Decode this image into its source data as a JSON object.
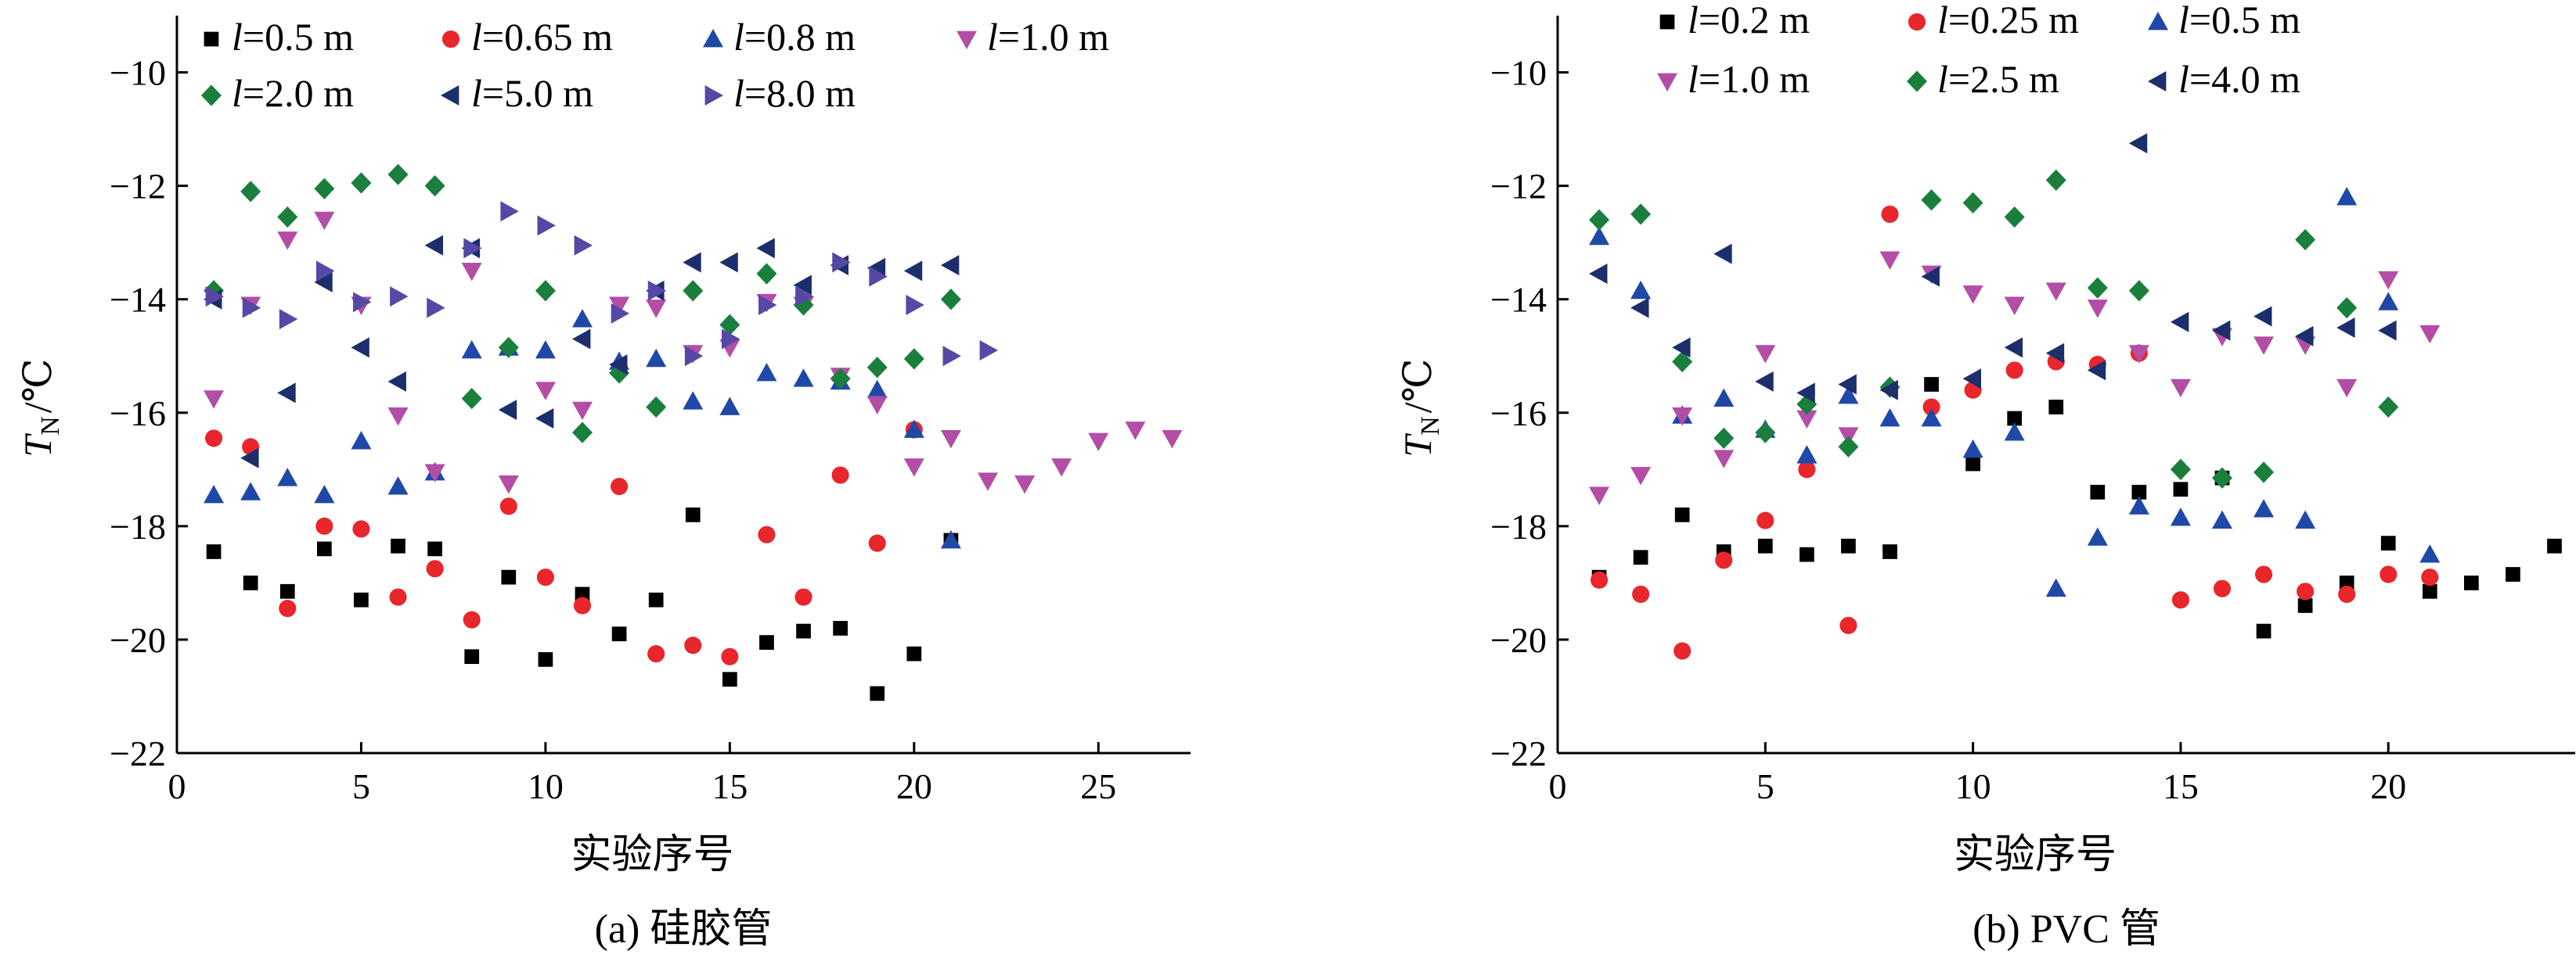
{
  "chart_data": [
    {
      "type": "scatter",
      "xlabel": "实验序号",
      "ylabel_main": "T",
      "ylabel_sub": "N",
      "ylabel_unit": "/℃",
      "caption": "(a)  硅胶管",
      "xlim": [
        0,
        27.5
      ],
      "ylim": [
        -22,
        -9
      ],
      "xticks": [
        0,
        5,
        10,
        15,
        20,
        25
      ],
      "yticks": [
        -22,
        -20,
        -18,
        -16,
        -14,
        -12,
        -10
      ],
      "ytick_labels": [
        "−22",
        "−20",
        "−18",
        "−16",
        "−14",
        "−12",
        "−10"
      ],
      "legend_rows": [
        [
          0,
          1,
          2,
          3
        ],
        [
          4,
          5,
          6
        ]
      ],
      "series": [
        {
          "name": "0.5 m",
          "marker": "square",
          "color": "#000000",
          "x": [
            1,
            2,
            3,
            4,
            5,
            6,
            7,
            8,
            9,
            10,
            11,
            12,
            13,
            14,
            15,
            16,
            17,
            18,
            19,
            20,
            21
          ],
          "y": [
            -18.45,
            -19.0,
            -19.15,
            -18.4,
            -19.3,
            -18.35,
            -18.4,
            -20.3,
            -18.9,
            -20.35,
            -19.2,
            -19.9,
            -19.3,
            -17.8,
            -20.7,
            -20.05,
            -19.85,
            -19.8,
            -20.95,
            -20.25,
            -18.25
          ]
        },
        {
          "name": "0.65 m",
          "marker": "circle",
          "color": "#e8262b",
          "x": [
            1,
            2,
            3,
            4,
            5,
            6,
            7,
            8,
            9,
            10,
            11,
            12,
            13,
            14,
            15,
            16,
            17,
            18,
            19,
            20
          ],
          "y": [
            -16.45,
            -16.6,
            -19.45,
            -18.0,
            -18.05,
            -19.25,
            -18.75,
            -19.65,
            -17.65,
            -18.9,
            -19.4,
            -17.3,
            -20.25,
            -20.1,
            -20.3,
            -18.15,
            -19.25,
            -17.1,
            -18.3,
            -16.3
          ]
        },
        {
          "name": "0.8 m",
          "marker": "triangle-up",
          "color": "#1f48a8",
          "x": [
            1,
            2,
            3,
            4,
            5,
            6,
            7,
            8,
            9,
            10,
            11,
            12,
            13,
            14,
            15,
            16,
            17,
            18,
            19,
            20,
            21
          ],
          "y": [
            -17.45,
            -17.4,
            -17.15,
            -17.45,
            -16.5,
            -17.3,
            -17.05,
            -14.9,
            -14.85,
            -14.9,
            -14.35,
            -15.1,
            -15.05,
            -15.8,
            -15.9,
            -15.3,
            -15.4,
            -15.45,
            -15.6,
            -16.3,
            -18.25
          ]
        },
        {
          "name": "1.0 m",
          "marker": "triangle-down",
          "color": "#b34da6",
          "x": [
            1,
            2,
            3,
            4,
            5,
            6,
            7,
            8,
            9,
            10,
            11,
            12,
            13,
            14,
            15,
            16,
            17,
            18,
            19,
            20,
            21,
            22,
            23,
            24,
            25,
            26,
            27
          ],
          "y": [
            -15.75,
            -14.1,
            -12.95,
            -12.6,
            -14.1,
            -16.05,
            -17.05,
            -13.5,
            -17.25,
            -15.6,
            -15.95,
            -14.1,
            -14.15,
            -14.95,
            -14.85,
            -14.05,
            -14.1,
            -15.35,
            -15.85,
            -16.95,
            -16.45,
            -17.2,
            -17.25,
            -16.95,
            -16.5,
            -16.3,
            -16.45
          ]
        },
        {
          "name": "2.0 m",
          "marker": "diamond",
          "color": "#1a7f3c",
          "x": [
            1,
            2,
            3,
            4,
            5,
            6,
            7,
            8,
            9,
            10,
            11,
            12,
            13,
            14,
            15,
            16,
            17,
            18,
            19,
            20,
            21
          ],
          "y": [
            -13.85,
            -12.1,
            -12.55,
            -12.05,
            -11.95,
            -11.8,
            -12.0,
            -15.75,
            -14.85,
            -13.85,
            -16.35,
            -15.3,
            -15.9,
            -13.85,
            -14.45,
            -13.55,
            -14.1,
            -15.4,
            -15.2,
            -15.05,
            -14.0
          ]
        },
        {
          "name": "5.0 m",
          "marker": "triangle-left",
          "color": "#1c2e6b",
          "x": [
            1,
            2,
            3,
            4,
            5,
            6,
            7,
            8,
            9,
            10,
            11,
            12,
            13,
            14,
            15,
            16,
            17,
            18,
            19,
            20,
            21
          ],
          "y": [
            -14.0,
            -16.8,
            -15.65,
            -13.7,
            -14.85,
            -15.45,
            -13.05,
            -13.1,
            -15.95,
            -16.1,
            -14.7,
            -15.15,
            -13.85,
            -13.35,
            -13.35,
            -13.1,
            -13.75,
            -13.4,
            -13.45,
            -13.5,
            -13.4
          ]
        },
        {
          "name": "8.0 m",
          "marker": "triangle-right",
          "color": "#5548a6",
          "x": [
            1,
            2,
            3,
            4,
            5,
            6,
            7,
            8,
            9,
            10,
            11,
            12,
            13,
            14,
            15,
            16,
            17,
            18,
            19,
            20,
            21,
            22
          ],
          "y": [
            -13.95,
            -14.15,
            -14.35,
            -13.5,
            -14.05,
            -13.95,
            -14.15,
            -13.1,
            -12.45,
            -12.7,
            -13.05,
            -14.25,
            -13.85,
            -15.0,
            -14.7,
            -14.1,
            -13.95,
            -13.35,
            -13.6,
            -14.1,
            -15.0,
            -14.9
          ]
        }
      ]
    },
    {
      "type": "scatter",
      "xlabel": "实验序号",
      "ylabel_main": "T",
      "ylabel_sub": "N",
      "ylabel_unit": "/℃",
      "caption": "(b)  PVC 管",
      "xlim": [
        0,
        24.5
      ],
      "ylim": [
        -22,
        -9
      ],
      "xticks": [
        0,
        5,
        10,
        15,
        20
      ],
      "yticks": [
        -22,
        -20,
        -18,
        -16,
        -14,
        -12,
        -10
      ],
      "ytick_labels": [
        "−22",
        "−20",
        "−18",
        "−16",
        "−14",
        "−12",
        "−10"
      ],
      "legend_rows": [
        [
          0,
          1,
          2
        ],
        [
          3,
          4,
          5
        ]
      ],
      "series": [
        {
          "name": "0.2 m",
          "marker": "square",
          "color": "#000000",
          "x": [
            1,
            2,
            3,
            4,
            5,
            6,
            7,
            8,
            9,
            10,
            11,
            12,
            13,
            14,
            15,
            16,
            17,
            18,
            19,
            20,
            21,
            22,
            23,
            24
          ],
          "y": [
            -18.9,
            -18.55,
            -17.8,
            -18.45,
            -18.35,
            -18.5,
            -18.35,
            -18.45,
            -15.5,
            -16.9,
            -16.1,
            -15.9,
            -17.4,
            -17.4,
            -17.35,
            -17.15,
            -19.85,
            -19.4,
            -19.0,
            -18.3,
            -19.15,
            -19.0,
            -18.85,
            -18.35
          ]
        },
        {
          "name": "0.25 m",
          "marker": "circle",
          "color": "#e8262b",
          "x": [
            1,
            2,
            3,
            4,
            5,
            6,
            7,
            8,
            9,
            10,
            11,
            12,
            13,
            14,
            15,
            16,
            17,
            18,
            19,
            20,
            21
          ],
          "y": [
            -18.95,
            -19.2,
            -20.2,
            -18.6,
            -17.9,
            -17.0,
            -19.75,
            -12.5,
            -15.9,
            -15.6,
            -15.25,
            -15.1,
            -15.15,
            -14.95,
            -19.3,
            -19.1,
            -18.85,
            -19.15,
            -19.2,
            -18.85,
            -18.9
          ]
        },
        {
          "name": "0.5 m",
          "marker": "triangle-up",
          "color": "#1f48a8",
          "x": [
            1,
            2,
            3,
            4,
            5,
            6,
            7,
            8,
            9,
            10,
            11,
            12,
            13,
            14,
            15,
            16,
            17,
            18,
            19,
            20,
            21
          ],
          "y": [
            -12.9,
            -13.85,
            -16.05,
            -15.75,
            -16.3,
            -16.75,
            -15.7,
            -16.1,
            -16.1,
            -16.65,
            -16.35,
            -19.1,
            -18.2,
            -17.65,
            -17.85,
            -17.9,
            -17.7,
            -17.9,
            -12.2,
            -14.05,
            -18.5
          ]
        },
        {
          "name": "1.0 m",
          "marker": "triangle-down",
          "color": "#b34da6",
          "x": [
            1,
            2,
            3,
            4,
            5,
            6,
            7,
            8,
            9,
            10,
            11,
            12,
            13,
            14,
            15,
            16,
            17,
            18,
            19,
            20,
            21
          ],
          "y": [
            -17.45,
            -17.1,
            -16.05,
            -16.8,
            -14.95,
            -16.1,
            -16.4,
            -13.3,
            -13.55,
            -13.9,
            -14.1,
            -13.85,
            -14.15,
            -14.95,
            -15.55,
            -14.65,
            -14.8,
            -14.8,
            -15.55,
            -13.65,
            -14.6
          ]
        },
        {
          "name": "2.5 m",
          "marker": "diamond",
          "color": "#1a7f3c",
          "x": [
            1,
            2,
            3,
            4,
            5,
            6,
            7,
            8,
            9,
            10,
            11,
            12,
            13,
            14,
            15,
            16,
            17,
            18,
            19,
            20
          ],
          "y": [
            -12.6,
            -12.5,
            -15.1,
            -16.45,
            -16.35,
            -15.85,
            -16.6,
            -15.55,
            -12.25,
            -12.3,
            -12.55,
            -11.9,
            -13.8,
            -13.85,
            -17.0,
            -17.15,
            -17.05,
            -12.95,
            -14.15,
            -15.9
          ]
        },
        {
          "name": "4.0 m",
          "marker": "triangle-left",
          "color": "#1c2e6b",
          "x": [
            1,
            2,
            3,
            4,
            5,
            6,
            7,
            8,
            9,
            10,
            11,
            12,
            13,
            14,
            15,
            16,
            17,
            18,
            19,
            20
          ],
          "y": [
            -13.55,
            -14.15,
            -14.85,
            -13.2,
            -15.45,
            -15.65,
            -15.5,
            -15.6,
            -13.6,
            -15.4,
            -14.85,
            -14.95,
            -15.25,
            -11.25,
            -14.4,
            -14.55,
            -14.3,
            -14.65,
            -14.5,
            -14.55
          ]
        }
      ]
    }
  ]
}
